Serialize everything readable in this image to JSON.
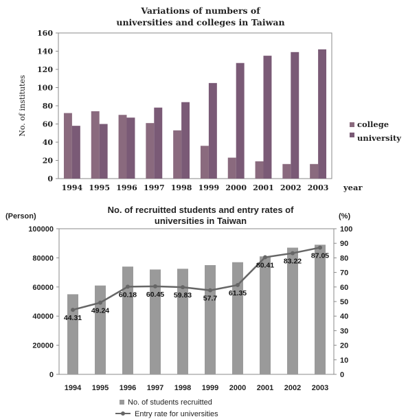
{
  "chart_data": [
    {
      "type": "bar",
      "title_line1": "Variations of numbers of",
      "title_line2": "universities and colleges in Taiwan",
      "ylabel": "No. of institutes",
      "xlabel": "year",
      "ylim": [
        0,
        160
      ],
      "yticks": [
        0,
        20,
        40,
        60,
        80,
        100,
        120,
        140,
        160
      ],
      "categories": [
        "1994",
        "1995",
        "1996",
        "1997",
        "1998",
        "1999",
        "2000",
        "2001",
        "2002",
        "2003"
      ],
      "series": [
        {
          "name": "college",
          "values": [
            72,
            74,
            70,
            61,
            53,
            36,
            23,
            19,
            16,
            16
          ]
        },
        {
          "name": "university",
          "values": [
            58,
            60,
            67,
            78,
            84,
            105,
            127,
            135,
            139,
            142
          ]
        }
      ],
      "colors": {
        "college": "#8a6a7e",
        "university": "#7a5a76"
      },
      "legend_position": "right",
      "grid": false
    },
    {
      "type": "bar+line",
      "title_line1": "No. of recruitted students and entry rates of",
      "title_line2": "universities in Taiwan",
      "y_left_unit": "(Person)",
      "y_right_unit": "(%)",
      "ylim_left": [
        0,
        100000
      ],
      "yticks_left": [
        "0",
        "20000",
        "40000",
        "60000",
        "80000",
        "100000"
      ],
      "ylim_right": [
        0,
        100
      ],
      "yticks_right": [
        "0",
        "10",
        "20",
        "30",
        "40",
        "50",
        "60",
        "70",
        "80",
        "90",
        "100"
      ],
      "categories": [
        "1994",
        "1995",
        "1996",
        "1997",
        "1998",
        "1999",
        "2000",
        "2001",
        "2002",
        "2003"
      ],
      "bars": {
        "name": "No. of students recruitted",
        "values": [
          55000,
          61000,
          74000,
          72000,
          72500,
          75000,
          77000,
          81000,
          87000,
          89000
        ]
      },
      "line": {
        "name": "Entry rate for universities",
        "values": [
          44.31,
          49.24,
          60.18,
          60.45,
          59.83,
          57.7,
          61.35,
          80.41,
          83.22,
          87.05
        ],
        "labels": [
          "44.31",
          "49.24",
          "60.18",
          "60.45",
          "59.83",
          "57.7",
          "61.35",
          "80.41",
          "83.22",
          "87.05"
        ]
      },
      "colors": {
        "bars": "#9a9a9a",
        "line": "#666666"
      },
      "legend_position": "bottom",
      "grid": false
    }
  ]
}
